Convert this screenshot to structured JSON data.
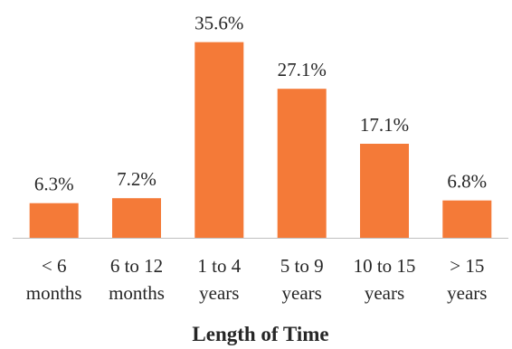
{
  "chart_data": {
    "type": "bar",
    "title": "",
    "xlabel": "Length of Time",
    "ylabel": "",
    "categories": [
      [
        "< 6",
        "months"
      ],
      [
        "6 to 12",
        "months"
      ],
      [
        "1 to 4",
        "years"
      ],
      [
        "5 to 9",
        "years"
      ],
      [
        "10 to 15",
        "years"
      ],
      [
        "> 15",
        "years"
      ]
    ],
    "values": [
      6.3,
      7.2,
      35.6,
      27.1,
      17.1,
      6.8
    ],
    "data_labels": [
      "6.3%",
      "7.2%",
      "35.6%",
      "27.1%",
      "17.1%",
      "6.8%"
    ],
    "ylim": [
      0,
      40
    ],
    "grid": false,
    "legend": "none",
    "bar_color": "#F47A38",
    "axis_color": "#BFBFBF",
    "text_color": "#262626"
  }
}
